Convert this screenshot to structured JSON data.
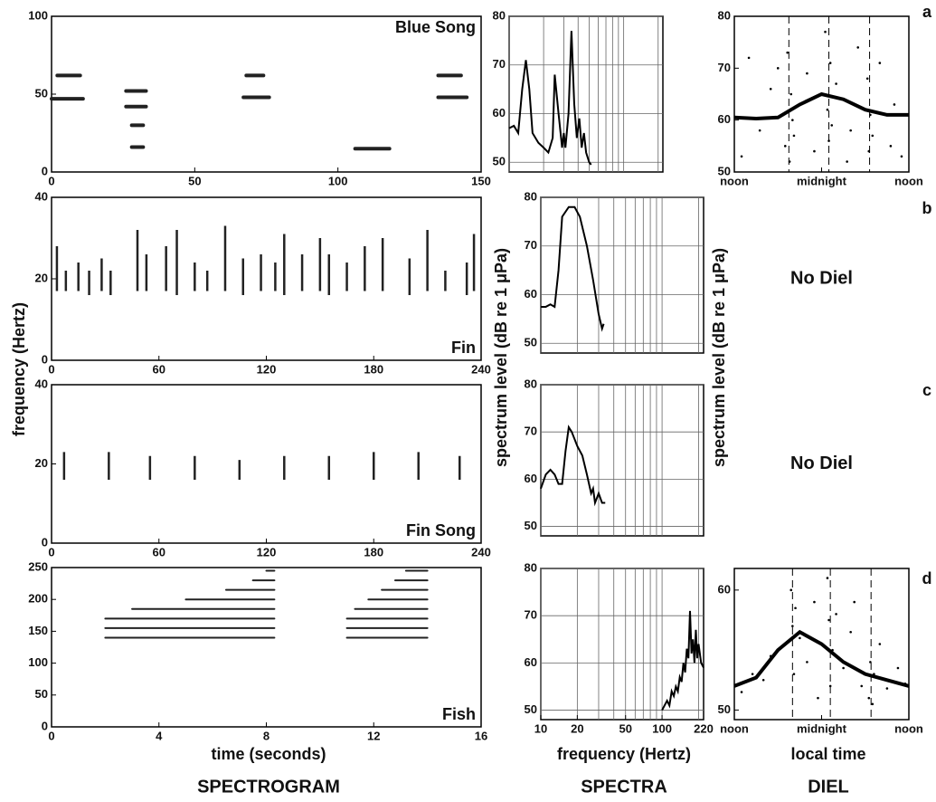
{
  "labels": {
    "y_spectrogram": "frequency (Hertz)",
    "y_spectra_left": "spectrum level (dB re 1 μPa)",
    "y_spectra_right": "spectrum level (dB re 1 μPa)",
    "x_spectrogram": "time (seconds)",
    "x_spectra": "frequency (Hertz)",
    "x_diel": "local time",
    "columns": [
      "SPECTROGRAM",
      "SPECTRA",
      "DIEL"
    ],
    "panels": [
      "a",
      "b",
      "c",
      "d"
    ]
  },
  "chart_data": [
    {
      "type": "spectrogram",
      "title": "Blue Song",
      "xlim": [
        0,
        150
      ],
      "ylim": [
        0,
        100
      ],
      "xticks": [
        0,
        50,
        100,
        150
      ],
      "yticks": [
        0,
        50,
        100
      ],
      "x": [
        0,
        28,
        67,
        135,
        28,
        106,
        2,
        26,
        135,
        26,
        68
      ],
      "x_end": [
        11,
        32,
        76,
        145,
        32,
        118,
        10,
        33,
        143,
        33,
        74
      ],
      "values": [
        47,
        16,
        48,
        48,
        30,
        15,
        62,
        52,
        62,
        42,
        62
      ]
    },
    {
      "type": "line",
      "xlog": true,
      "xlim": [
        10,
        220
      ],
      "ylim": [
        48,
        80
      ],
      "yticks": [
        50,
        60,
        70,
        80
      ],
      "xgrid": [
        10,
        20,
        30,
        40,
        50,
        60,
        70,
        80,
        90,
        100,
        200
      ],
      "grid": true,
      "x": [
        10,
        11,
        12,
        13,
        14,
        15,
        16,
        18,
        20,
        22,
        24,
        25,
        27,
        29,
        30,
        31,
        33,
        35,
        37,
        39,
        41,
        43,
        45,
        47,
        50,
        52
      ],
      "values": [
        57,
        57.5,
        56,
        65,
        71,
        65,
        56,
        54,
        53,
        52,
        55,
        68,
        60,
        53,
        56,
        53,
        60,
        77,
        62,
        55,
        59,
        53,
        56,
        52,
        50,
        49.5
      ]
    },
    {
      "type": "diel",
      "xlim": [
        0,
        24
      ],
      "ylim": [
        50,
        80
      ],
      "yticks": [
        50,
        60,
        70,
        80
      ],
      "xticks": [
        {
          "value": 0,
          "label": "noon"
        },
        {
          "value": 12,
          "label": "midnight"
        },
        {
          "value": 24,
          "label": "noon"
        }
      ],
      "vlines": [
        7.5,
        13,
        18.6
      ],
      "points_x": [
        1,
        2,
        3.5,
        5,
        7,
        7.3,
        7.6,
        7.8,
        8,
        8.2,
        10,
        11,
        12.5,
        12.8,
        13,
        13.2,
        13.4,
        14,
        15.5,
        17,
        18.3,
        18.5,
        18.7,
        19,
        20,
        21.5,
        22,
        23,
        6,
        16
      ],
      "points_y": [
        53,
        72,
        58,
        66,
        55,
        73,
        52,
        65,
        60,
        57,
        69,
        54,
        77,
        62,
        56,
        71,
        59,
        67,
        52,
        74,
        68,
        54,
        61,
        57,
        71,
        55,
        63,
        53,
        70,
        58
      ],
      "x": [
        0,
        3,
        6,
        9,
        12,
        15,
        18,
        21,
        24
      ],
      "values": [
        60.5,
        60.3,
        60.5,
        63,
        65,
        64,
        62,
        61,
        61
      ]
    },
    {
      "type": "spectrogram",
      "title": "Fin",
      "xlim": [
        0,
        240
      ],
      "ylim": [
        0,
        40
      ],
      "xticks": [
        0,
        60,
        120,
        180,
        240
      ],
      "yticks": [
        0,
        20,
        40
      ],
      "x": [
        3,
        8,
        15,
        21,
        28,
        33,
        48,
        53,
        64,
        70,
        80,
        87,
        97,
        107,
        117,
        125,
        130,
        140,
        150,
        155,
        165,
        175,
        185,
        200,
        210,
        220,
        232,
        236
      ],
      "values_low": [
        17,
        17,
        17,
        16,
        17,
        16,
        17,
        17,
        17,
        16,
        17,
        17,
        17,
        16,
        17,
        17,
        16,
        17,
        17,
        16,
        17,
        17,
        17,
        16,
        17,
        17,
        16,
        17
      ],
      "values": [
        28,
        22,
        24,
        22,
        25,
        22,
        32,
        26,
        28,
        32,
        24,
        22,
        33,
        25,
        26,
        24,
        31,
        26,
        30,
        26,
        24,
        28,
        30,
        25,
        32,
        22,
        24,
        31
      ]
    },
    {
      "type": "line",
      "xlog": true,
      "xlim": [
        10,
        220
      ],
      "ylim": [
        48,
        80
      ],
      "yticks": [
        50,
        60,
        70,
        80
      ],
      "xgrid": [
        10,
        20,
        30,
        40,
        50,
        60,
        70,
        80,
        90,
        100,
        200
      ],
      "grid": true,
      "x": [
        10,
        11,
        12,
        13,
        14,
        15,
        17,
        19,
        21,
        24,
        27,
        30,
        32,
        33
      ],
      "values": [
        57.5,
        57.5,
        58,
        57.5,
        65,
        76,
        78,
        78,
        76,
        70,
        63,
        56,
        53,
        54
      ]
    },
    {
      "type": "note",
      "text": "No Diel"
    },
    {
      "type": "spectrogram",
      "title": "Fin Song",
      "xlim": [
        0,
        240
      ],
      "ylim": [
        0,
        40
      ],
      "xticks": [
        0,
        60,
        120,
        180,
        240
      ],
      "yticks": [
        0,
        20,
        40
      ],
      "x": [
        7,
        32,
        55,
        80,
        105,
        130,
        155,
        180,
        205,
        228
      ],
      "values_low": [
        16,
        16,
        16,
        16,
        16,
        16,
        16,
        16,
        16,
        16
      ],
      "values": [
        23,
        23,
        22,
        22,
        21,
        22,
        22,
        23,
        23,
        22
      ]
    },
    {
      "type": "line",
      "xlog": true,
      "xlim": [
        10,
        220
      ],
      "ylim": [
        48,
        80
      ],
      "yticks": [
        50,
        60,
        70,
        80
      ],
      "xgrid": [
        10,
        20,
        30,
        40,
        50,
        60,
        70,
        80,
        90,
        100,
        200
      ],
      "grid": true,
      "x": [
        10,
        11,
        12,
        13,
        14,
        15,
        16,
        17,
        18,
        20,
        22,
        24,
        26,
        27,
        28,
        29,
        30,
        32,
        34
      ],
      "values": [
        58,
        61,
        62,
        61,
        59,
        59,
        66,
        71,
        70,
        67,
        65,
        61,
        57,
        58,
        55,
        56,
        57,
        55,
        55
      ]
    },
    {
      "type": "note",
      "text": "No Diel"
    },
    {
      "type": "spectrogram",
      "title": "Fish",
      "xlim": [
        0,
        16
      ],
      "ylim": [
        0,
        250
      ],
      "xticks": [
        0,
        4,
        8,
        12,
        16
      ],
      "yticks": [
        0,
        50,
        100,
        150,
        200,
        250
      ],
      "x": [
        2,
        2,
        2,
        3,
        5,
        6.5,
        7.5,
        8,
        11,
        11,
        11,
        11.3,
        11.8,
        12.3,
        12.8,
        13.2
      ],
      "x_end": [
        8.3,
        8.3,
        8.3,
        8.3,
        8.3,
        8.3,
        8.3,
        8.3,
        14,
        14,
        14,
        14,
        14,
        14,
        14,
        14
      ],
      "values": [
        140,
        155,
        170,
        185,
        200,
        215,
        230,
        245,
        140,
        155,
        170,
        185,
        200,
        215,
        230,
        245
      ]
    },
    {
      "type": "line",
      "xlog": true,
      "xlim": [
        10,
        220
      ],
      "ylim": [
        48,
        80
      ],
      "yticks": [
        50,
        60,
        70,
        80
      ],
      "xticks": [
        10,
        20,
        50,
        100,
        220
      ],
      "xgrid": [
        10,
        20,
        30,
        40,
        50,
        60,
        70,
        80,
        90,
        100,
        200
      ],
      "grid": true,
      "x": [
        100,
        110,
        115,
        120,
        125,
        130,
        135,
        140,
        145,
        150,
        155,
        160,
        165,
        170,
        175,
        180,
        185,
        190,
        195,
        200,
        210,
        220
      ],
      "values": [
        50,
        52,
        51,
        54,
        53,
        55,
        54,
        57,
        56,
        60,
        58,
        63,
        61,
        71,
        62,
        65,
        60,
        67,
        61,
        64,
        60,
        59
      ]
    },
    {
      "type": "diel",
      "xlim": [
        0,
        24
      ],
      "ylim": [
        49.2,
        61.8
      ],
      "yticks": [
        50,
        60
      ],
      "xticks": [
        {
          "value": 0,
          "label": "noon"
        },
        {
          "value": 12,
          "label": "midnight"
        },
        {
          "value": 24,
          "label": "noon"
        }
      ],
      "vlines": [
        8,
        13.2,
        18.8
      ],
      "points_x": [
        1,
        2.5,
        4,
        6,
        7.8,
        8,
        8.2,
        8.4,
        9,
        10,
        11,
        12.8,
        13,
        13.2,
        13.5,
        14,
        15,
        16,
        17.5,
        18.5,
        18.7,
        19,
        19.2,
        20,
        21,
        22.5,
        23.5,
        5,
        11.5,
        16.5
      ],
      "points_y": [
        51.5,
        53,
        52.5,
        55,
        60,
        57,
        53,
        58.5,
        56,
        54,
        59,
        61,
        57.5,
        52,
        55,
        58,
        53.5,
        56.5,
        52,
        51,
        54,
        50.5,
        53,
        55.5,
        51.8,
        53.5,
        52.2,
        54.5,
        51,
        59
      ],
      "x": [
        0,
        3,
        6,
        9,
        12,
        15,
        18,
        21,
        24
      ],
      "values": [
        52,
        52.7,
        55,
        56.5,
        55.5,
        54,
        53,
        52.5,
        52
      ]
    }
  ]
}
